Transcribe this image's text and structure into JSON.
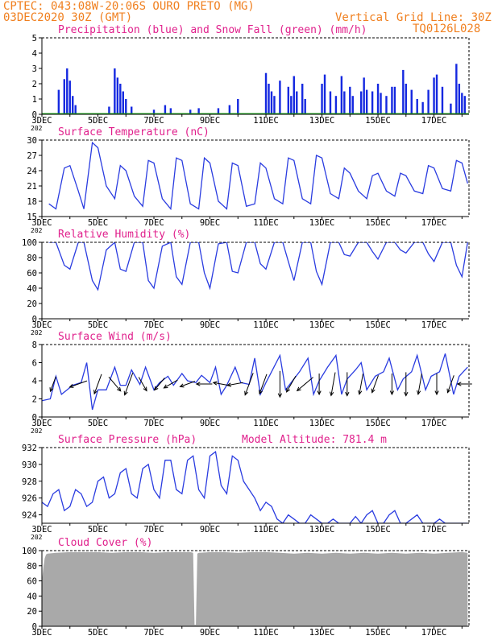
{
  "header": {
    "line1": "CPTEC:   043:08W-20:06S  OURO PRETO (MG)",
    "line2": "03DEC2020 30Z (GMT)",
    "right1": "Vertical Grid Line: 30Z",
    "right2": "TQ0126L028"
  },
  "colors": {
    "header": "#f08020",
    "title": "#e0208c",
    "precip": "#1428e0",
    "snow": "#20b020",
    "line": "#2a3ce0",
    "cloud": "#a9a9a9"
  },
  "x_axis": {
    "date_labels": [
      "3DEC",
      "5DEC",
      "7DEC",
      "9DEC",
      "11DEC",
      "13DEC",
      "15DEC",
      "17DEC"
    ],
    "year_fragment": "202"
  },
  "chart_data": [
    {
      "id": "precip",
      "type": "bar",
      "title": "Precipitation (blue) and Snow Fall (green) (mm/h)",
      "ylim": [
        0,
        5
      ],
      "yticks": [
        0,
        1,
        2,
        3,
        4,
        5
      ],
      "series": [
        {
          "name": "Precipitation",
          "color": "#1428e0",
          "events": [
            [
              3.6,
              1.6
            ],
            [
              3.8,
              2.3
            ],
            [
              3.9,
              3.0
            ],
            [
              4.0,
              2.2
            ],
            [
              4.1,
              1.2
            ],
            [
              4.2,
              0.6
            ],
            [
              5.4,
              0.5
            ],
            [
              5.6,
              3.0
            ],
            [
              5.7,
              2.4
            ],
            [
              5.8,
              2.0
            ],
            [
              5.9,
              1.5
            ],
            [
              6.0,
              1.0
            ],
            [
              6.2,
              0.5
            ],
            [
              7.0,
              0.3
            ],
            [
              7.4,
              0.6
            ],
            [
              7.6,
              0.4
            ],
            [
              8.3,
              0.3
            ],
            [
              8.6,
              0.4
            ],
            [
              9.3,
              0.4
            ],
            [
              9.7,
              0.6
            ],
            [
              10.0,
              1.0
            ],
            [
              11.0,
              2.7
            ],
            [
              11.1,
              2.0
            ],
            [
              11.2,
              1.5
            ],
            [
              11.3,
              1.2
            ],
            [
              11.5,
              2.2
            ],
            [
              11.8,
              1.8
            ],
            [
              11.9,
              1.2
            ],
            [
              12.0,
              2.5
            ],
            [
              12.1,
              1.5
            ],
            [
              12.3,
              2.0
            ],
            [
              12.4,
              1.0
            ],
            [
              13.0,
              2.0
            ],
            [
              13.1,
              2.6
            ],
            [
              13.3,
              1.5
            ],
            [
              13.5,
              1.2
            ],
            [
              13.7,
              2.5
            ],
            [
              13.8,
              1.5
            ],
            [
              14.0,
              1.8
            ],
            [
              14.1,
              1.2
            ],
            [
              14.4,
              1.5
            ],
            [
              14.5,
              2.4
            ],
            [
              14.6,
              1.6
            ],
            [
              14.8,
              1.5
            ],
            [
              15.0,
              2.0
            ],
            [
              15.1,
              1.4
            ],
            [
              15.3,
              1.2
            ],
            [
              15.5,
              1.8
            ],
            [
              15.6,
              1.8
            ],
            [
              15.9,
              2.9
            ],
            [
              16.0,
              2.0
            ],
            [
              16.2,
              1.6
            ],
            [
              16.4,
              1.0
            ],
            [
              16.6,
              0.8
            ],
            [
              16.8,
              1.6
            ],
            [
              17.0,
              2.4
            ],
            [
              17.1,
              2.6
            ],
            [
              17.3,
              1.8
            ],
            [
              17.6,
              0.7
            ],
            [
              17.8,
              3.3
            ],
            [
              17.9,
              2.0
            ],
            [
              18.0,
              1.4
            ],
            [
              18.1,
              1.2
            ]
          ]
        },
        {
          "name": "Snow Fall",
          "color": "#20b020",
          "values_mm_per_h": 0
        }
      ]
    },
    {
      "id": "temp",
      "type": "line",
      "title": "Surface Temperature (nC)",
      "ylim": [
        15,
        30
      ],
      "yticks": [
        15,
        18,
        21,
        24,
        27,
        30
      ],
      "series": [
        {
          "x": [
            3.25,
            3.5,
            3.8,
            4.0,
            4.3,
            4.5,
            4.8,
            5.0,
            5.3,
            5.6,
            5.8,
            6.0,
            6.3,
            6.6,
            6.8,
            7.0,
            7.3,
            7.6,
            7.8,
            8.0,
            8.3,
            8.6,
            8.8,
            9.0,
            9.3,
            9.6,
            9.8,
            10.0,
            10.3,
            10.6,
            10.8,
            11.0,
            11.3,
            11.6,
            11.8,
            12.0,
            12.3,
            12.6,
            12.8,
            13.0,
            13.3,
            13.6,
            13.8,
            14.0,
            14.3,
            14.6,
            14.8,
            15.0,
            15.3,
            15.6,
            15.8,
            16.0,
            16.3,
            16.6,
            16.8,
            17.0,
            17.3,
            17.6,
            17.8,
            18.0,
            18.2
          ],
          "y": [
            17.5,
            16.5,
            24.5,
            25.0,
            20.0,
            16.5,
            29.5,
            28.5,
            21.0,
            18.5,
            25.0,
            24.0,
            19.0,
            17.0,
            26.0,
            25.5,
            18.5,
            16.5,
            26.5,
            26.0,
            17.5,
            16.5,
            26.5,
            25.5,
            18.0,
            16.5,
            25.5,
            25.0,
            17.0,
            17.5,
            25.5,
            24.5,
            18.5,
            17.5,
            26.5,
            26.0,
            18.5,
            17.5,
            27.0,
            26.5,
            19.5,
            18.5,
            24.5,
            23.5,
            20.0,
            18.5,
            23.0,
            23.5,
            20.0,
            19.0,
            23.5,
            23.0,
            20.0,
            19.5,
            25.0,
            24.5,
            20.5,
            20.0,
            26.0,
            25.5,
            21.5
          ]
        }
      ]
    },
    {
      "id": "rh",
      "type": "line",
      "title": "Relative Humidity (%)",
      "ylim": [
        0,
        100
      ],
      "yticks": [
        0,
        20,
        40,
        60,
        80,
        100
      ],
      "series": [
        {
          "x": [
            3.25,
            3.5,
            3.8,
            4.0,
            4.3,
            4.5,
            4.8,
            5.0,
            5.3,
            5.6,
            5.8,
            6.0,
            6.3,
            6.6,
            6.8,
            7.0,
            7.3,
            7.6,
            7.8,
            8.0,
            8.3,
            8.6,
            8.8,
            9.0,
            9.3,
            9.6,
            9.8,
            10.0,
            10.3,
            10.6,
            10.8,
            11.0,
            11.3,
            11.6,
            11.8,
            12.0,
            12.3,
            12.6,
            12.8,
            13.0,
            13.3,
            13.6,
            13.8,
            14.0,
            14.3,
            14.6,
            14.8,
            15.0,
            15.3,
            15.6,
            15.8,
            16.0,
            16.3,
            16.6,
            16.8,
            17.0,
            17.3,
            17.6,
            17.8,
            18.0,
            18.2
          ],
          "y": [
            100,
            100,
            70,
            65,
            100,
            100,
            50,
            38,
            90,
            100,
            65,
            62,
            100,
            100,
            50,
            40,
            95,
            100,
            55,
            45,
            100,
            100,
            60,
            40,
            98,
            100,
            62,
            60,
            100,
            100,
            72,
            65,
            100,
            100,
            75,
            50,
            100,
            100,
            62,
            45,
            100,
            100,
            84,
            82,
            100,
            100,
            88,
            78,
            100,
            100,
            90,
            86,
            100,
            100,
            85,
            75,
            100,
            100,
            70,
            55,
            100
          ]
        }
      ]
    },
    {
      "id": "wind",
      "type": "line",
      "title": "Surface Wind (m/s)",
      "ylim": [
        0,
        8
      ],
      "yticks": [
        0,
        2,
        4,
        6,
        8
      ],
      "series": [
        {
          "x": [
            3.0,
            3.3,
            3.5,
            3.7,
            3.9,
            4.1,
            4.4,
            4.6,
            4.8,
            5.0,
            5.3,
            5.6,
            5.8,
            6.0,
            6.2,
            6.5,
            6.7,
            7.0,
            7.2,
            7.5,
            7.7,
            8.0,
            8.2,
            8.5,
            8.7,
            9.0,
            9.2,
            9.4,
            9.6,
            9.9,
            10.1,
            10.4,
            10.6,
            10.8,
            11.0,
            11.2,
            11.5,
            11.7,
            11.9,
            12.2,
            12.5,
            12.7,
            12.9,
            13.2,
            13.5,
            13.7,
            13.9,
            14.2,
            14.4,
            14.6,
            14.9,
            15.2,
            15.4,
            15.7,
            15.9,
            16.2,
            16.4,
            16.7,
            16.9,
            17.2,
            17.4,
            17.7,
            17.9,
            18.2
          ],
          "y": [
            1.8,
            2.0,
            4.5,
            2.5,
            3.0,
            3.5,
            3.8,
            6.0,
            0.8,
            3.0,
            3.0,
            5.5,
            3.5,
            3.5,
            5.2,
            3.6,
            5.5,
            3.0,
            3.8,
            4.5,
            3.5,
            4.8,
            4.0,
            3.8,
            4.6,
            3.8,
            5.5,
            2.5,
            3.5,
            5.5,
            3.8,
            3.6,
            6.5,
            2.5,
            3.8,
            5.0,
            6.8,
            3.0,
            3.8,
            5.0,
            6.5,
            2.5,
            4.0,
            5.5,
            6.8,
            2.5,
            4.2,
            5.2,
            6.0,
            3.0,
            4.5,
            5.0,
            6.5,
            3.0,
            4.2,
            5.0,
            6.8,
            3.0,
            4.5,
            5.0,
            7.0,
            2.5,
            4.5,
            5.5
          ]
        }
      ],
      "vectors": [
        [
          3.4,
          200,
          6
        ],
        [
          4.3,
          250,
          8
        ],
        [
          5.0,
          200,
          10
        ],
        [
          5.6,
          140,
          8
        ],
        [
          6.1,
          200,
          12
        ],
        [
          6.6,
          150,
          6
        ],
        [
          7.2,
          220,
          6
        ],
        [
          7.6,
          240,
          6
        ],
        [
          8.2,
          250,
          6
        ],
        [
          8.8,
          270,
          6
        ],
        [
          9.4,
          280,
          6
        ],
        [
          9.9,
          260,
          6
        ],
        [
          10.4,
          200,
          12
        ],
        [
          10.9,
          200,
          10
        ],
        [
          11.5,
          180,
          14
        ],
        [
          11.9,
          210,
          8
        ],
        [
          12.4,
          230,
          10
        ],
        [
          12.9,
          180,
          10
        ],
        [
          13.4,
          190,
          12
        ],
        [
          13.9,
          180,
          12
        ],
        [
          14.4,
          190,
          10
        ],
        [
          14.9,
          200,
          8
        ],
        [
          15.5,
          180,
          10
        ],
        [
          16.0,
          180,
          12
        ],
        [
          16.5,
          190,
          10
        ],
        [
          17.1,
          180,
          10
        ],
        [
          17.6,
          200,
          8
        ],
        [
          18.1,
          270,
          5
        ]
      ]
    },
    {
      "id": "pres",
      "type": "line",
      "title": "Surface Pressure (hPa)",
      "annotation": "Model Altitude: 781.4 m",
      "ylim": [
        923,
        932
      ],
      "yticks": [
        924,
        926,
        928,
        930,
        932
      ],
      "series": [
        {
          "x": [
            3.0,
            3.2,
            3.4,
            3.6,
            3.8,
            4.0,
            4.2,
            4.4,
            4.6,
            4.8,
            5.0,
            5.2,
            5.4,
            5.6,
            5.8,
            6.0,
            6.2,
            6.4,
            6.6,
            6.8,
            7.0,
            7.2,
            7.4,
            7.6,
            7.8,
            8.0,
            8.2,
            8.4,
            8.6,
            8.8,
            9.0,
            9.2,
            9.4,
            9.6,
            9.8,
            10.0,
            10.2,
            10.4,
            10.6,
            10.8,
            11.0,
            11.2,
            11.4,
            11.6,
            11.8,
            12.0,
            12.2,
            12.4,
            12.6,
            12.8,
            13.0,
            13.2,
            13.4,
            13.6,
            13.8,
            14.0,
            14.2,
            14.4,
            14.6,
            14.8,
            15.0,
            15.2,
            15.4,
            15.6,
            15.8,
            16.0,
            16.2,
            16.4,
            16.6,
            16.8,
            17.0,
            17.2,
            17.4,
            17.6,
            17.8,
            18.0,
            18.2
          ],
          "y": [
            925.5,
            925.0,
            926.5,
            927.0,
            924.5,
            925.0,
            927.0,
            926.5,
            925.0,
            925.5,
            928.0,
            928.5,
            926.0,
            926.5,
            929.0,
            929.5,
            926.5,
            926.0,
            929.5,
            930.0,
            927.0,
            926.0,
            930.5,
            930.5,
            927.0,
            926.5,
            930.5,
            931.0,
            927.0,
            926.0,
            931.0,
            931.5,
            927.5,
            926.5,
            931.0,
            930.5,
            928.0,
            927.0,
            926.0,
            924.5,
            925.5,
            925.0,
            923.5,
            923.0,
            924.0,
            923.5,
            922.5,
            923.0,
            924.0,
            923.5,
            922.5,
            923.0,
            923.5,
            923.0,
            922.5,
            923.0,
            923.8,
            923.0,
            924.0,
            924.5,
            923.0,
            922.5,
            924.0,
            924.5,
            923.0,
            922.0,
            923.5,
            924.0,
            922.0,
            921.5,
            923.0,
            923.5,
            922.0,
            922.5,
            921.5,
            922.0,
            922.5
          ]
        }
      ]
    },
    {
      "id": "cloud",
      "type": "area",
      "title": "Cloud Cover (%)",
      "ylim": [
        0,
        100
      ],
      "yticks": [
        0,
        20,
        40,
        60,
        80,
        100
      ],
      "series": [
        {
          "x": [
            3.0,
            3.03,
            3.06,
            3.1,
            3.15,
            3.2,
            3.5,
            4.0,
            4.5,
            5.0,
            5.5,
            6.0,
            6.5,
            7.0,
            7.5,
            8.0,
            8.3,
            8.4,
            8.45,
            8.5,
            8.55,
            8.6,
            9.0,
            9.5,
            10.0,
            10.5,
            11.0,
            11.5,
            12.0,
            12.5,
            13.0,
            13.5,
            14.0,
            14.5,
            15.0,
            15.5,
            16.0,
            16.5,
            17.0,
            17.5,
            18.0,
            18.2
          ],
          "y": [
            60,
            70,
            80,
            90,
            95,
            96,
            97,
            98,
            98,
            98,
            97,
            98,
            98,
            97,
            98,
            98,
            98,
            97,
            2,
            2,
            96,
            97,
            98,
            98,
            97,
            98,
            98,
            97,
            96,
            97,
            96,
            97,
            96,
            97,
            96,
            97,
            96,
            97,
            96,
            97,
            98,
            97
          ]
        }
      ]
    }
  ]
}
